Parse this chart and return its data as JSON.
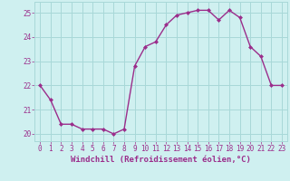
{
  "x": [
    0,
    1,
    2,
    3,
    4,
    5,
    6,
    7,
    8,
    9,
    10,
    11,
    12,
    13,
    14,
    15,
    16,
    17,
    18,
    19,
    20,
    21,
    22,
    23
  ],
  "y": [
    22.0,
    21.4,
    20.4,
    20.4,
    20.2,
    20.2,
    20.2,
    20.0,
    20.2,
    22.8,
    23.6,
    23.8,
    24.5,
    24.9,
    25.0,
    25.1,
    25.1,
    24.7,
    25.1,
    24.8,
    23.6,
    23.2,
    22.0,
    22.0
  ],
  "line_color": "#9b2d8b",
  "marker": "D",
  "marker_size": 2.0,
  "bg_color": "#cff0f0",
  "grid_color": "#a8d8d8",
  "xlabel": "Windchill (Refroidissement éolien,°C)",
  "xlim": [
    -0.5,
    23.5
  ],
  "ylim": [
    19.7,
    25.45
  ],
  "yticks": [
    20,
    21,
    22,
    23,
    24,
    25
  ],
  "xticks": [
    0,
    1,
    2,
    3,
    4,
    5,
    6,
    7,
    8,
    9,
    10,
    11,
    12,
    13,
    14,
    15,
    16,
    17,
    18,
    19,
    20,
    21,
    22,
    23
  ],
  "tick_color": "#9b2d8b",
  "tick_fontsize": 5.5,
  "xlabel_fontsize": 6.5,
  "line_width": 1.0
}
